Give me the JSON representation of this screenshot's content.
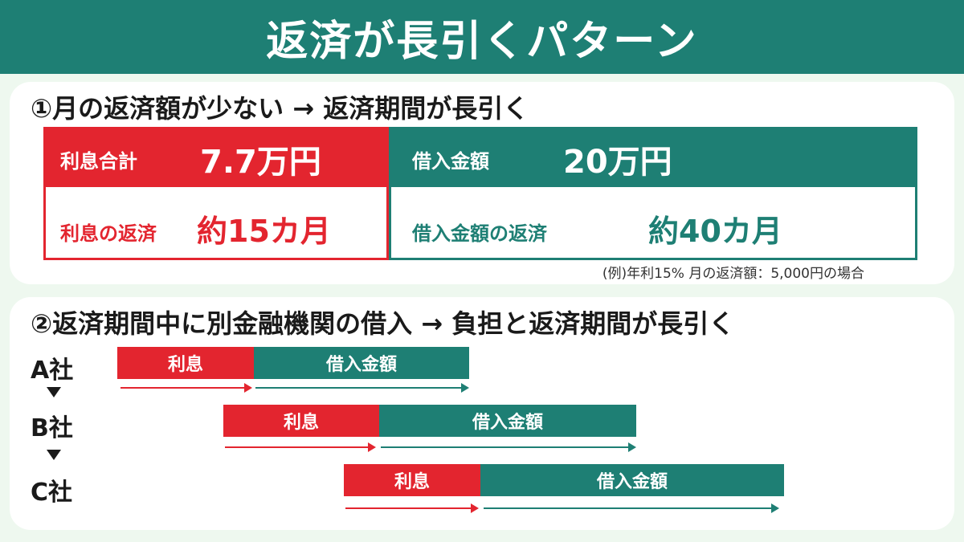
{
  "title": "返済が長引くパターン",
  "section1": {
    "heading": "①月の返済額が少ない → 返済期間が長引く",
    "interest_total_label": "利息合計",
    "interest_total_value": "7.7万円",
    "interest_repay_label": "利息の返済",
    "interest_repay_value": "約15カ月",
    "loan_amount_label": "借入金額",
    "loan_amount_value": "20万円",
    "loan_repay_label": "借入金額の返済",
    "loan_repay_value": "約40カ月",
    "note": "(例)年利15% 月の返済額：5,000円の場合"
  },
  "section2": {
    "heading": "②返済期間中に別金融機関の借入 → 負担と返済期間が長引く",
    "companies": [
      {
        "name": "A社",
        "interest_label": "利息",
        "loan_label": "借入金額"
      },
      {
        "name": "B社",
        "interest_label": "利息",
        "loan_label": "借入金額"
      },
      {
        "name": "C社",
        "interest_label": "利息",
        "loan_label": "借入金額"
      }
    ]
  },
  "colors": {
    "red": "#e3252f",
    "teal": "#1e7f74",
    "background": "#eef8ef"
  }
}
